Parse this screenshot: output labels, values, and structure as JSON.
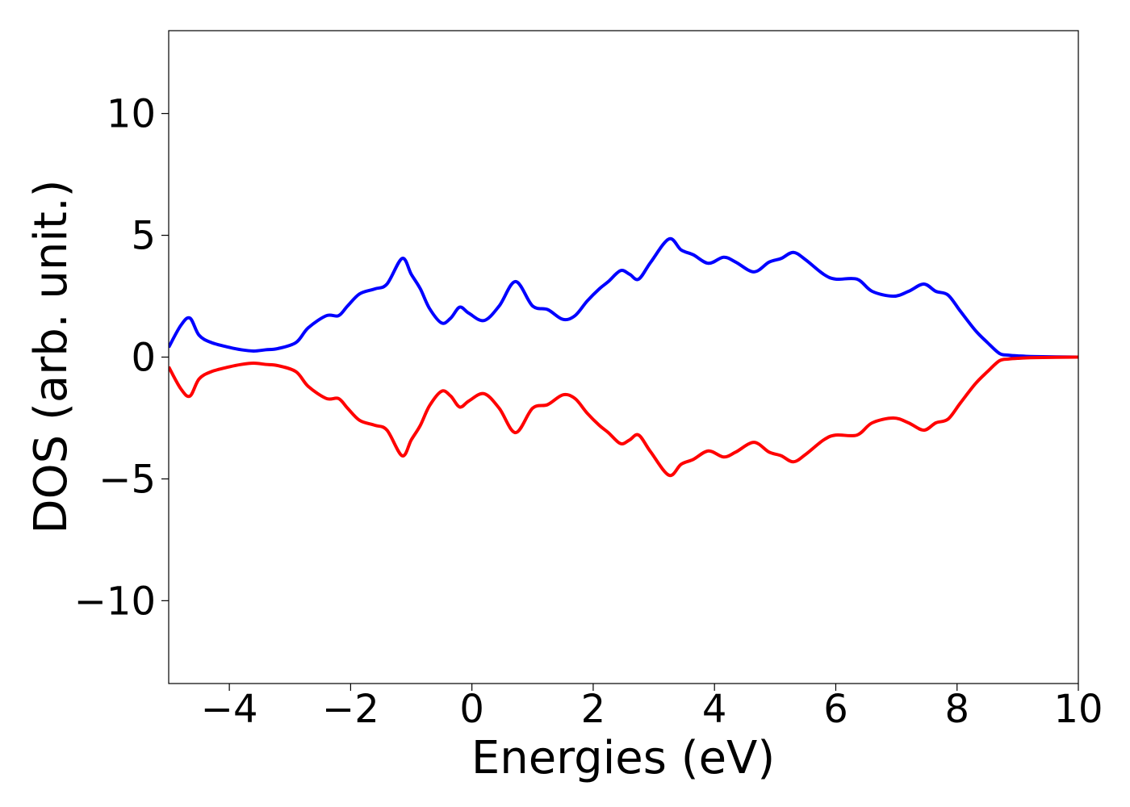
{
  "chart_data": {
    "type": "line",
    "title": "",
    "xlabel": "Energies (eV)",
    "ylabel": "DOS (arb. unit.)",
    "xlim": [
      -5,
      10
    ],
    "ylim": [
      -13.4,
      13.4
    ],
    "grid": false,
    "legend": "none",
    "xticks": [
      -4,
      -2,
      0,
      2,
      4,
      6,
      8,
      10
    ],
    "yticks": [
      -10,
      -5,
      0,
      5,
      10
    ],
    "xtick_labels": [
      "−4",
      "−2",
      "0",
      "2",
      "4",
      "6",
      "8",
      "10"
    ],
    "ytick_labels": [
      "−10",
      "−5",
      "0",
      "5",
      "10"
    ],
    "series": [
      {
        "color": "#0000ff",
        "x": [
          -5.0,
          -4.8,
          -4.65,
          -4.5,
          -4.3,
          -4.0,
          -3.8,
          -3.6,
          -3.4,
          -3.2,
          -2.9,
          -2.7,
          -2.4,
          -2.2,
          -2.05,
          -1.85,
          -1.6,
          -1.4,
          -1.15,
          -1.0,
          -0.85,
          -0.7,
          -0.5,
          -0.35,
          -0.2,
          -0.05,
          0.2,
          0.45,
          0.72,
          1.0,
          1.25,
          1.5,
          1.7,
          1.9,
          2.1,
          2.25,
          2.45,
          2.6,
          2.75,
          2.95,
          3.25,
          3.45,
          3.65,
          3.9,
          4.15,
          4.35,
          4.65,
          4.9,
          5.1,
          5.3,
          5.5,
          5.8,
          6.0,
          6.35,
          6.6,
          6.95,
          7.2,
          7.45,
          7.65,
          7.85,
          8.05,
          8.3,
          8.5,
          8.7,
          8.85,
          9.0,
          9.3,
          10.0
        ],
        "values": [
          0.4,
          1.3,
          1.6,
          0.9,
          0.6,
          0.4,
          0.3,
          0.25,
          0.3,
          0.35,
          0.6,
          1.2,
          1.7,
          1.7,
          2.1,
          2.6,
          2.8,
          3.0,
          4.05,
          3.4,
          2.8,
          2.0,
          1.4,
          1.6,
          2.05,
          1.8,
          1.5,
          2.1,
          3.1,
          2.1,
          1.95,
          1.55,
          1.7,
          2.3,
          2.8,
          3.1,
          3.55,
          3.4,
          3.2,
          3.9,
          4.85,
          4.4,
          4.2,
          3.85,
          4.1,
          3.9,
          3.5,
          3.9,
          4.05,
          4.3,
          4.0,
          3.4,
          3.2,
          3.2,
          2.7,
          2.5,
          2.7,
          3.0,
          2.7,
          2.55,
          1.9,
          1.1,
          0.6,
          0.15,
          0.08,
          0.05,
          0.02,
          0.0
        ]
      },
      {
        "color": "#ff0000",
        "x": [
          -5.0,
          -4.8,
          -4.65,
          -4.5,
          -4.3,
          -4.0,
          -3.8,
          -3.6,
          -3.4,
          -3.2,
          -2.9,
          -2.7,
          -2.4,
          -2.2,
          -2.05,
          -1.85,
          -1.6,
          -1.4,
          -1.15,
          -1.0,
          -0.85,
          -0.7,
          -0.5,
          -0.35,
          -0.2,
          -0.05,
          0.2,
          0.45,
          0.72,
          1.0,
          1.25,
          1.5,
          1.7,
          1.9,
          2.1,
          2.25,
          2.45,
          2.6,
          2.75,
          2.95,
          3.25,
          3.45,
          3.65,
          3.9,
          4.15,
          4.35,
          4.65,
          4.9,
          5.1,
          5.3,
          5.5,
          5.8,
          6.0,
          6.35,
          6.6,
          6.95,
          7.2,
          7.45,
          7.65,
          7.85,
          8.05,
          8.3,
          8.5,
          8.7,
          8.85,
          9.0,
          9.3,
          10.0
        ],
        "values": [
          -0.4,
          -1.3,
          -1.6,
          -0.9,
          -0.6,
          -0.4,
          -0.3,
          -0.25,
          -0.3,
          -0.35,
          -0.6,
          -1.2,
          -1.7,
          -1.7,
          -2.1,
          -2.6,
          -2.8,
          -3.0,
          -4.05,
          -3.4,
          -2.8,
          -2.0,
          -1.4,
          -1.6,
          -2.05,
          -1.8,
          -1.5,
          -2.1,
          -3.1,
          -2.1,
          -1.95,
          -1.55,
          -1.7,
          -2.3,
          -2.8,
          -3.1,
          -3.55,
          -3.4,
          -3.2,
          -3.9,
          -4.85,
          -4.4,
          -4.2,
          -3.85,
          -4.1,
          -3.9,
          -3.5,
          -3.9,
          -4.05,
          -4.3,
          -4.0,
          -3.4,
          -3.2,
          -3.2,
          -2.7,
          -2.5,
          -2.7,
          -3.0,
          -2.7,
          -2.55,
          -1.9,
          -1.1,
          -0.6,
          -0.15,
          -0.08,
          -0.05,
          -0.02,
          0.0
        ]
      }
    ]
  }
}
